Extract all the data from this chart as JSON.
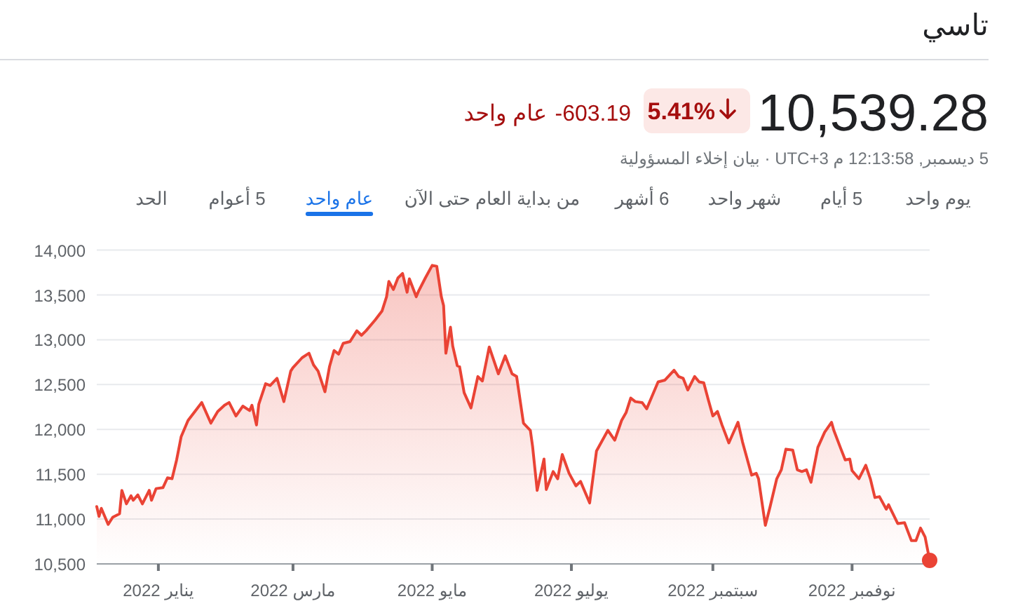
{
  "chart_data": {
    "type": "area",
    "title": "تاسي",
    "subtitle": "5 ديسمبر, 12:13:58 م UTC+3 · بيان إخلاء المسؤولية",
    "annotations": [
      "10,539.28",
      "5.41%",
      "-603.19",
      "عام واحد",
      "يوم واحد",
      "5 أيام",
      "شهر واحد",
      "6 أشهر",
      "من بداية العام حتى الآن",
      "عام واحد",
      "5 أعوام",
      "الحد"
    ],
    "xlim": [
      "2021-12-05",
      "2022-12-05"
    ],
    "xticks": [
      {
        "value": "2022-01-01",
        "label": "يناير 2022"
      },
      {
        "value": "2022-03-01",
        "label": "مارس 2022"
      },
      {
        "value": "2022-05-01",
        "label": "مايو 2022"
      },
      {
        "value": "2022-07-01",
        "label": "يوليو 2022"
      },
      {
        "value": "2022-09-01",
        "label": "سبتمبر 2022"
      },
      {
        "value": "2022-11-01",
        "label": "نوفمبر 2022"
      }
    ],
    "ylim": [
      10500,
      14000
    ],
    "yticks": [
      {
        "value": 10500,
        "label": "10,500"
      },
      {
        "value": 11000,
        "label": "11,000"
      },
      {
        "value": 11500,
        "label": "11,500"
      },
      {
        "value": 12000,
        "label": "12,000"
      },
      {
        "value": 12500,
        "label": "12,500"
      },
      {
        "value": 13000,
        "label": "13,000"
      },
      {
        "value": 13500,
        "label": "13,500"
      },
      {
        "value": 14000,
        "label": "14,000"
      }
    ],
    "grid": "y",
    "series": [
      {
        "color": "#ea4335",
        "x": [
          "2021-12-05",
          "2021-12-06",
          "2021-12-07",
          "2021-12-10",
          "2021-12-12",
          "2021-12-15",
          "2021-12-16",
          "2021-12-18",
          "2021-12-20",
          "2021-12-21",
          "2021-12-23",
          "2021-12-25",
          "2021-12-28",
          "2021-12-29",
          "2021-12-31",
          "2022-01-03",
          "2022-01-05",
          "2022-01-07",
          "2022-01-09",
          "2022-01-11",
          "2022-01-14",
          "2022-01-17",
          "2022-01-20",
          "2022-01-24",
          "2022-01-27",
          "2022-01-30",
          "2022-02-01",
          "2022-02-04",
          "2022-02-07",
          "2022-02-10",
          "2022-02-11",
          "2022-02-13",
          "2022-02-14",
          "2022-02-17",
          "2022-02-19",
          "2022-02-22",
          "2022-02-25",
          "2022-02-28",
          "2022-03-01",
          "2022-03-05",
          "2022-03-08",
          "2022-03-10",
          "2022-03-12",
          "2022-03-15",
          "2022-03-17",
          "2022-03-19",
          "2022-03-21",
          "2022-03-23",
          "2022-03-26",
          "2022-03-29",
          "2022-03-31",
          "2022-04-02",
          "2022-04-06",
          "2022-04-09",
          "2022-04-11",
          "2022-04-12",
          "2022-04-14",
          "2022-04-16",
          "2022-04-18",
          "2022-04-20",
          "2022-04-21",
          "2022-04-24",
          "2022-04-25",
          "2022-04-28",
          "2022-05-01",
          "2022-05-03",
          "2022-05-05",
          "2022-05-06",
          "2022-05-07",
          "2022-05-09",
          "2022-05-10",
          "2022-05-12",
          "2022-05-13",
          "2022-05-15",
          "2022-05-18",
          "2022-05-21",
          "2022-05-23",
          "2022-05-26",
          "2022-05-30",
          "2022-06-02",
          "2022-06-05",
          "2022-06-07",
          "2022-06-10",
          "2022-06-13",
          "2022-06-14",
          "2022-06-16",
          "2022-06-19",
          "2022-06-20",
          "2022-06-23",
          "2022-06-25",
          "2022-06-27",
          "2022-06-30",
          "2022-07-03",
          "2022-07-05",
          "2022-07-09",
          "2022-07-12",
          "2022-07-17",
          "2022-07-20",
          "2022-07-23",
          "2022-07-25",
          "2022-07-27",
          "2022-07-29",
          "2022-08-01",
          "2022-08-03",
          "2022-08-05",
          "2022-08-08",
          "2022-08-11",
          "2022-08-15",
          "2022-08-17",
          "2022-08-19",
          "2022-08-21",
          "2022-08-24",
          "2022-08-26",
          "2022-08-28",
          "2022-08-30",
          "2022-09-01",
          "2022-09-03",
          "2022-09-05",
          "2022-09-08",
          "2022-09-12",
          "2022-09-14",
          "2022-09-18",
          "2022-09-20",
          "2022-09-21",
          "2022-09-24",
          "2022-09-26",
          "2022-09-29",
          "2022-10-01",
          "2022-10-03",
          "2022-10-06",
          "2022-10-08",
          "2022-10-10",
          "2022-10-12",
          "2022-10-14",
          "2022-10-17",
          "2022-10-20",
          "2022-10-23",
          "2022-10-24",
          "2022-10-27",
          "2022-10-29",
          "2022-10-31",
          "2022-11-01",
          "2022-11-04",
          "2022-11-07",
          "2022-11-09",
          "2022-11-11",
          "2022-11-13",
          "2022-11-16",
          "2022-11-17",
          "2022-11-21",
          "2022-11-24",
          "2022-11-27",
          "2022-11-29",
          "2022-12-01",
          "2022-12-03",
          "2022-12-05"
        ],
        "values": [
          11140,
          11030,
          11120,
          10940,
          11020,
          11060,
          11320,
          11170,
          11260,
          11210,
          11270,
          11170,
          11320,
          11210,
          11340,
          11350,
          11460,
          11450,
          11660,
          11920,
          12100,
          12200,
          12300,
          12070,
          12200,
          12270,
          12300,
          12150,
          12260,
          12210,
          12270,
          12050,
          12280,
          12510,
          12490,
          12570,
          12310,
          12650,
          12690,
          12800,
          12850,
          12720,
          12650,
          12420,
          12700,
          12880,
          12840,
          12960,
          12980,
          13100,
          13050,
          13100,
          13220,
          13320,
          13480,
          13650,
          13560,
          13690,
          13740,
          13530,
          13680,
          13480,
          13540,
          13690,
          13830,
          13820,
          13480,
          13380,
          12850,
          13140,
          12930,
          12710,
          12700,
          12410,
          12240,
          12590,
          12540,
          12920,
          12620,
          12820,
          12620,
          12590,
          12070,
          11990,
          11810,
          11320,
          11670,
          11330,
          11530,
          11450,
          11720,
          11510,
          11370,
          11420,
          11180,
          11760,
          11990,
          11880,
          12100,
          12190,
          12350,
          12310,
          12300,
          12230,
          12350,
          12530,
          12550,
          12660,
          12590,
          12570,
          12440,
          12590,
          12530,
          12520,
          12330,
          12150,
          12200,
          12050,
          11850,
          12080,
          11860,
          11490,
          11510,
          11450,
          10930,
          11130,
          11450,
          11550,
          11780,
          11770,
          11550,
          11530,
          11550,
          11410,
          11800,
          11970,
          12080,
          11990,
          11790,
          11660,
          11670,
          11540,
          11450,
          11600,
          11450,
          11240,
          11250,
          11110,
          11160,
          10950,
          10960,
          10760,
          10760,
          10900,
          10800,
          10540
        ]
      },
      {
        "type": "scatter",
        "marker": "circle",
        "color": "#ea4335",
        "x": [
          "2022-12-05"
        ],
        "values": [
          10540
        ]
      }
    ]
  }
}
